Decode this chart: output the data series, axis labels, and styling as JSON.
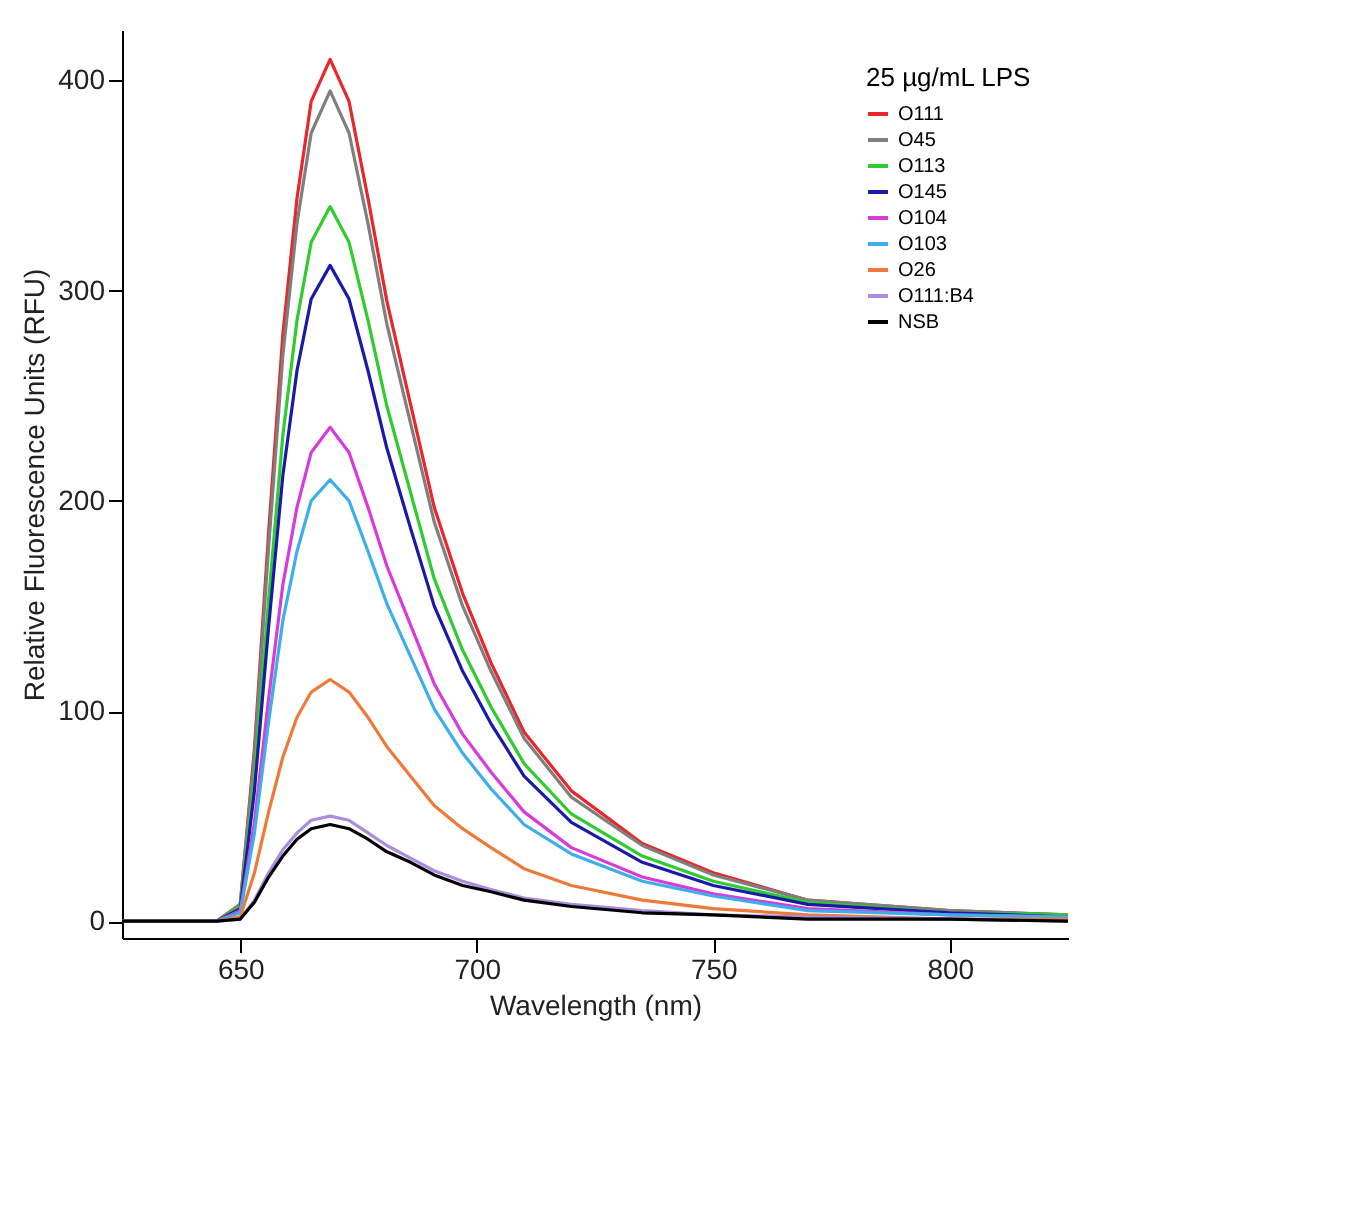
{
  "chart_data": {
    "type": "line",
    "xlabel": "Wavelength (nm)",
    "ylabel": "Relative Fluorescence Units (RFU)",
    "legend_title": "25 µg/mL LPS",
    "x": [
      625,
      645,
      650,
      653,
      656,
      659,
      662,
      665,
      669,
      673,
      677,
      681,
      686,
      691,
      697,
      703,
      710,
      720,
      735,
      750,
      770,
      800,
      825
    ],
    "xlim": [
      625,
      825
    ],
    "xticks": [
      650,
      700,
      750,
      800
    ],
    "ylim": [
      -8,
      424
    ],
    "yticks": [
      0,
      100,
      200,
      300,
      400
    ],
    "grid": false,
    "legend": "top right",
    "line_style": "solid",
    "marker": "none",
    "series": [
      {
        "name": "O111",
        "color": "#e8262b",
        "values": [
          0,
          0,
          8,
          82,
          185,
          279,
          344,
          390,
          410,
          390,
          344,
          295,
          246,
          197,
          156,
          123,
          90,
          62,
          37,
          23,
          10,
          5,
          3
        ]
      },
      {
        "name": "O45",
        "color": "#7f7f7f",
        "values": [
          0,
          0,
          8,
          79,
          178,
          269,
          332,
          375,
          395,
          375,
          332,
          284,
          237,
          190,
          150,
          119,
          87,
          59,
          36,
          22,
          10,
          5,
          3
        ]
      },
      {
        "name": "O113",
        "color": "#2ecc2e",
        "values": [
          0,
          0,
          7,
          68,
          153,
          231,
          286,
          323,
          340,
          323,
          286,
          245,
          204,
          163,
          129,
          102,
          75,
          51,
          31,
          19,
          9,
          4,
          3
        ]
      },
      {
        "name": "O145",
        "color": "#1a1aa8",
        "values": [
          0,
          0,
          6,
          62,
          140,
          212,
          262,
          296,
          312,
          296,
          262,
          225,
          187,
          150,
          119,
          94,
          69,
          47,
          28,
          17,
          8,
          4,
          2
        ]
      },
      {
        "name": "O104",
        "color": "#d93bd9",
        "values": [
          0,
          0,
          5,
          47,
          106,
          160,
          197,
          223,
          235,
          223,
          197,
          169,
          141,
          113,
          89,
          71,
          52,
          35,
          21,
          13,
          6,
          3,
          2
        ]
      },
      {
        "name": "O103",
        "color": "#3daee9",
        "values": [
          0,
          0,
          4,
          42,
          95,
          143,
          176,
          200,
          210,
          200,
          176,
          151,
          126,
          101,
          80,
          63,
          46,
          32,
          19,
          12,
          5,
          3,
          2
        ]
      },
      {
        "name": "O26",
        "color": "#ee7a3a",
        "values": [
          0,
          0,
          2,
          23,
          52,
          78,
          97,
          109,
          115,
          109,
          97,
          83,
          69,
          55,
          44,
          35,
          25,
          17,
          10,
          6,
          3,
          1,
          1
        ]
      },
      {
        "name": "O111:B4",
        "color": "#a98ee0",
        "values": [
          0,
          0,
          1,
          10,
          23,
          34,
          42,
          48,
          50,
          48,
          42,
          36,
          30,
          24,
          19,
          15,
          11,
          8,
          5,
          3,
          2,
          1,
          0
        ]
      },
      {
        "name": "NSB",
        "color": "#000000",
        "values": [
          0,
          0,
          1,
          9,
          21,
          31,
          39,
          44,
          46,
          44,
          39,
          33,
          28,
          22,
          17,
          14,
          10,
          7,
          4,
          3,
          1,
          1,
          0
        ]
      }
    ]
  }
}
